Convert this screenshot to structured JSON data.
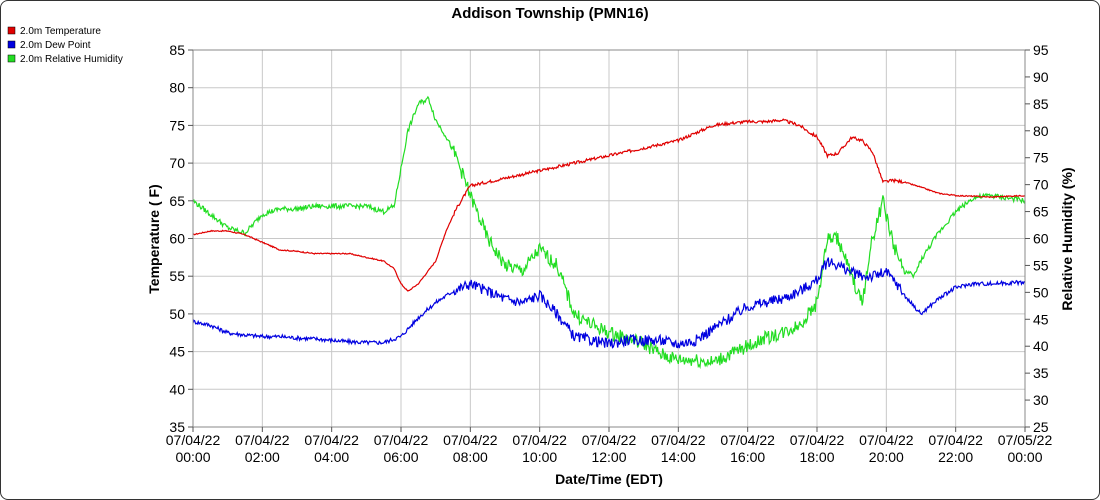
{
  "chart_data": {
    "type": "line",
    "title": "Addison Township (PMN16)",
    "xlabel": "Date/Time (EDT)",
    "ylabel": "Temperature ( F)",
    "y2label": "Relative Humidity (%)",
    "ylim": [
      35,
      85
    ],
    "y2lim": [
      25,
      95
    ],
    "xlim": [
      0,
      24
    ],
    "x_ticks": [
      {
        "x": 0,
        "date": "07/04/22",
        "time": "00:00"
      },
      {
        "x": 2,
        "date": "07/04/22",
        "time": "02:00"
      },
      {
        "x": 4,
        "date": "07/04/22",
        "time": "04:00"
      },
      {
        "x": 6,
        "date": "07/04/22",
        "time": "06:00"
      },
      {
        "x": 8,
        "date": "07/04/22",
        "time": "08:00"
      },
      {
        "x": 10,
        "date": "07/04/22",
        "time": "10:00"
      },
      {
        "x": 12,
        "date": "07/04/22",
        "time": "12:00"
      },
      {
        "x": 14,
        "date": "07/04/22",
        "time": "14:00"
      },
      {
        "x": 16,
        "date": "07/04/22",
        "time": "16:00"
      },
      {
        "x": 18,
        "date": "07/04/22",
        "time": "18:00"
      },
      {
        "x": 20,
        "date": "07/04/22",
        "time": "20:00"
      },
      {
        "x": 22,
        "date": "07/04/22",
        "time": "22:00"
      },
      {
        "x": 24,
        "date": "07/05/22",
        "time": "00:00"
      }
    ],
    "y_ticks": [
      35,
      40,
      45,
      50,
      55,
      60,
      65,
      70,
      75,
      80,
      85
    ],
    "y2_ticks": [
      25,
      30,
      35,
      40,
      45,
      50,
      55,
      60,
      65,
      70,
      75,
      80,
      85,
      90,
      95
    ],
    "grid": true,
    "legend": "top-left",
    "series": [
      {
        "name": "2.0m Temperature",
        "axis": "left",
        "color": "#e00000",
        "x": [
          0,
          0.5,
          1,
          1.5,
          2,
          2.5,
          3,
          3.5,
          4,
          4.5,
          5,
          5.5,
          5.8,
          6,
          6.2,
          6.5,
          7,
          7.3,
          7.6,
          8,
          8.5,
          9,
          9.5,
          10,
          10.5,
          11,
          11.5,
          12,
          12.5,
          13,
          13.5,
          14,
          14.5,
          15,
          15.5,
          16,
          16.5,
          17,
          17.5,
          17.8,
          18,
          18.3,
          18.6,
          19,
          19.3,
          19.6,
          19.9,
          20.2,
          20.5,
          21,
          21.5,
          22,
          22.5,
          23,
          23.5,
          24
        ],
        "y": [
          60.5,
          61,
          61,
          60.5,
          59.5,
          58.5,
          58.3,
          58,
          58,
          58,
          57.5,
          57,
          56,
          54,
          53,
          54,
          57,
          61,
          64,
          67,
          67.5,
          68,
          68.5,
          69,
          69.5,
          70,
          70.5,
          71,
          71.5,
          72,
          72.5,
          73,
          74,
          75,
          75.3,
          75.5,
          75.5,
          75.7,
          75,
          74,
          73.5,
          71,
          71.3,
          73.4,
          73,
          71.5,
          67.5,
          67.7,
          67.5,
          66.8,
          66,
          65.7,
          65.6,
          65.5,
          65.6,
          65.7
        ]
      },
      {
        "name": "2.0m Dew Point",
        "axis": "left",
        "color": "#0000e0",
        "x": [
          0,
          0.5,
          1,
          1.5,
          2,
          2.5,
          3,
          3.5,
          4,
          4.5,
          5,
          5.5,
          6,
          6.5,
          7,
          7.5,
          8,
          8.5,
          9,
          9.5,
          10,
          10.5,
          11,
          11.5,
          12,
          12.5,
          13,
          13.5,
          14,
          14.5,
          15,
          15.5,
          16,
          16.5,
          17,
          17.5,
          18,
          18.3,
          18.6,
          19,
          19.3,
          19.6,
          20,
          20.3,
          20.6,
          21,
          21.5,
          22,
          22.5,
          23,
          23.5,
          24
        ],
        "y": [
          49,
          48.5,
          47.5,
          47.2,
          47,
          47,
          46.8,
          46.7,
          46.5,
          46.3,
          46.2,
          46.2,
          47,
          49.5,
          51.5,
          53,
          54,
          53,
          52,
          51.5,
          52.5,
          50,
          47,
          46.5,
          46,
          46.5,
          46.5,
          46.5,
          46,
          46.5,
          48,
          49.5,
          51,
          51.5,
          52,
          53,
          54.5,
          57,
          56.5,
          55.5,
          55,
          55,
          55.5,
          54,
          52,
          50,
          52,
          53.5,
          54,
          54,
          54.1,
          54.2
        ]
      },
      {
        "name": "2.0m Relative Humidity",
        "axis": "right",
        "color": "#22dd22",
        "x": [
          0,
          0.5,
          1,
          1.5,
          2,
          2.5,
          3,
          3.5,
          4,
          4.5,
          5,
          5.5,
          5.8,
          6,
          6.2,
          6.5,
          6.8,
          7,
          7.3,
          7.6,
          8,
          8.5,
          9,
          9.5,
          10,
          10.5,
          11,
          11.5,
          12,
          12.5,
          13,
          13.5,
          14,
          14.5,
          15,
          15.5,
          16,
          16.5,
          17,
          17.5,
          18,
          18.3,
          18.6,
          19,
          19.3,
          19.6,
          19.9,
          20.2,
          20.5,
          20.8,
          21,
          21.5,
          22,
          22.5,
          23,
          23.5,
          24
        ],
        "y": [
          67,
          64.5,
          62,
          61,
          64.5,
          65.5,
          65.5,
          66,
          66,
          66,
          66,
          65,
          66,
          73,
          80,
          85,
          86,
          82,
          79,
          75,
          68,
          60,
          55,
          54,
          58,
          55,
          46,
          44,
          42.5,
          41.5,
          40.5,
          38.5,
          37.5,
          37.5,
          37,
          38.5,
          40,
          41.5,
          42.5,
          44,
          48,
          60,
          60,
          53,
          48,
          60,
          67,
          59,
          54,
          53,
          56,
          61,
          65,
          67.5,
          68,
          67.5,
          67
        ]
      }
    ]
  }
}
